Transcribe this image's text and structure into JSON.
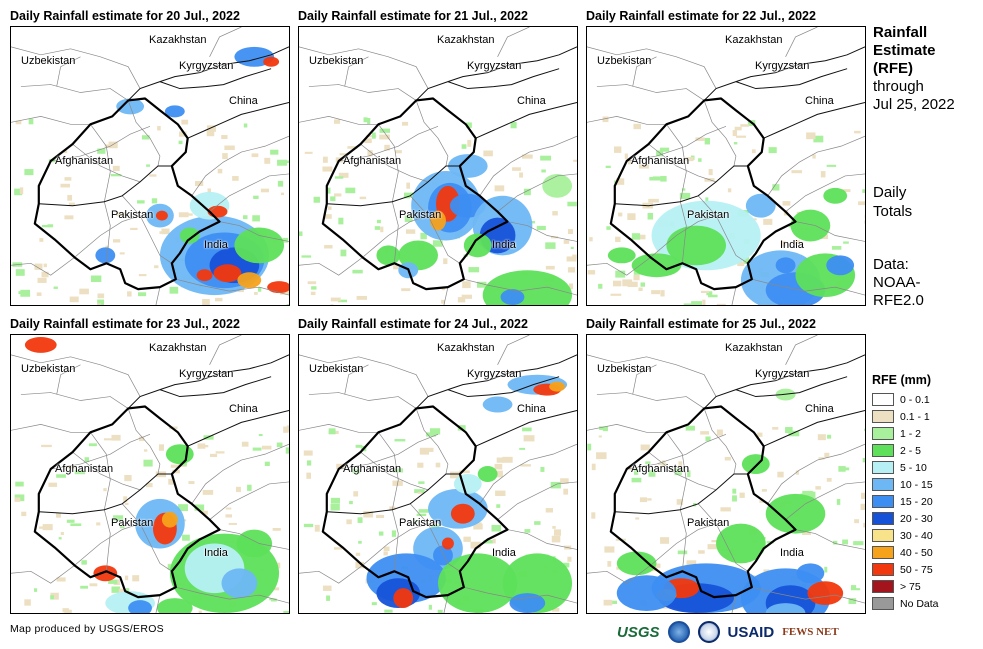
{
  "panels": [
    {
      "title": "Daily Rainfall estimate for 20 Jul., 2022"
    },
    {
      "title": "Daily Rainfall estimate for 21 Jul., 2022"
    },
    {
      "title": "Daily Rainfall estimate for 22 Jul., 2022"
    },
    {
      "title": "Daily Rainfall estimate for 23 Jul., 2022"
    },
    {
      "title": "Daily Rainfall estimate for 24 Jul., 2022"
    },
    {
      "title": "Daily Rainfall estimate for 25 Jul., 2022"
    }
  ],
  "countries": {
    "kazakhstan": "Kazakhstan",
    "uzbekistan": "Uzbekistan",
    "kyrgyzstan": "Kyrgyzstan",
    "china": "China",
    "afghanistan": "Afghanistan",
    "pakistan": "Pakistan",
    "india": "India"
  },
  "side": {
    "title_lines": [
      "Rainfall",
      "Estimate",
      "(RFE)"
    ],
    "through": "through",
    "date": "Jul 25, 2022",
    "daily_lines": [
      "Daily",
      "Totals"
    ],
    "data_lines": [
      "Data:",
      "NOAA-",
      "RFE2.0"
    ]
  },
  "legend": {
    "title": "RFE (mm)",
    "items": [
      {
        "label": "0 - 0.1",
        "color": "#ffffff"
      },
      {
        "label": "0.1 - 1",
        "color": "#ede0c2"
      },
      {
        "label": "1 - 2",
        "color": "#a8f09b"
      },
      {
        "label": "2 - 5",
        "color": "#5ee05a"
      },
      {
        "label": "5 - 10",
        "color": "#b6f0f4"
      },
      {
        "label": "10 - 15",
        "color": "#6eb7f5"
      },
      {
        "label": "15 - 20",
        "color": "#3d8ef2"
      },
      {
        "label": "20 - 30",
        "color": "#1652d8"
      },
      {
        "label": "30 - 40",
        "color": "#f8e38a"
      },
      {
        "label": "40 - 50",
        "color": "#f7a21b"
      },
      {
        "label": "50 - 75",
        "color": "#f2380e"
      },
      {
        "label": "> 75",
        "color": "#a4141d"
      },
      {
        "label": "No Data",
        "color": "#999999"
      }
    ]
  },
  "credit": "Map produced by USGS/EROS",
  "logos": {
    "usgs": "USGS",
    "usaid": "USAID",
    "fews": "FEWS NET"
  }
}
